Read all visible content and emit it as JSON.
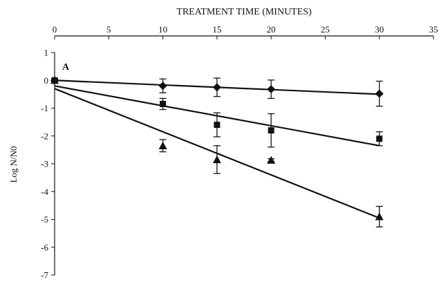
{
  "chart_data": {
    "type": "scatter",
    "title": "TREATMENT TIME (MINUTES)",
    "xlabel": "TREATMENT TIME (MINUTES)",
    "ylabel": "Log N/N0",
    "panel_label": "A",
    "xlim": [
      0,
      35
    ],
    "ylim": [
      -7,
      1
    ],
    "x_ticks": [
      0,
      5,
      10,
      15,
      20,
      25,
      30,
      35
    ],
    "y_ticks": [
      1,
      0,
      -1,
      -2,
      -3,
      -4,
      -5,
      -6,
      -7
    ],
    "x_axis_position": "top",
    "grid": false,
    "series": [
      {
        "marker": "diamond",
        "points": [
          {
            "x": 0,
            "y": 0.0,
            "err": 0.05
          },
          {
            "x": 10,
            "y": -0.2,
            "err": 0.25
          },
          {
            "x": 15,
            "y": -0.25,
            "err": 0.33
          },
          {
            "x": 20,
            "y": -0.32,
            "err": 0.33
          },
          {
            "x": 30,
            "y": -0.48,
            "err": 0.45
          }
        ],
        "fit": {
          "x0": 0,
          "y0": 0.0,
          "x1": 30,
          "y1": -0.5
        }
      },
      {
        "marker": "square",
        "points": [
          {
            "x": 0,
            "y": 0.0,
            "err": 0.05
          },
          {
            "x": 10,
            "y": -0.85,
            "err": 0.2
          },
          {
            "x": 15,
            "y": -1.6,
            "err": 0.43
          },
          {
            "x": 20,
            "y": -1.8,
            "err": 0.6
          },
          {
            "x": 30,
            "y": -2.1,
            "err": 0.25
          }
        ],
        "fit": {
          "x0": 0,
          "y0": -0.2,
          "x1": 30,
          "y1": -2.35
        }
      },
      {
        "marker": "triangle",
        "points": [
          {
            "x": 0,
            "y": 0.0,
            "err": 0.05
          },
          {
            "x": 10,
            "y": -2.35,
            "err": 0.22
          },
          {
            "x": 15,
            "y": -2.85,
            "err": 0.5
          },
          {
            "x": 20,
            "y": -2.87,
            "err": 0.05
          },
          {
            "x": 30,
            "y": -4.9,
            "err": 0.37
          }
        ],
        "fit": {
          "x0": 0,
          "y0": -0.3,
          "x1": 30,
          "y1": -4.95
        }
      }
    ]
  }
}
